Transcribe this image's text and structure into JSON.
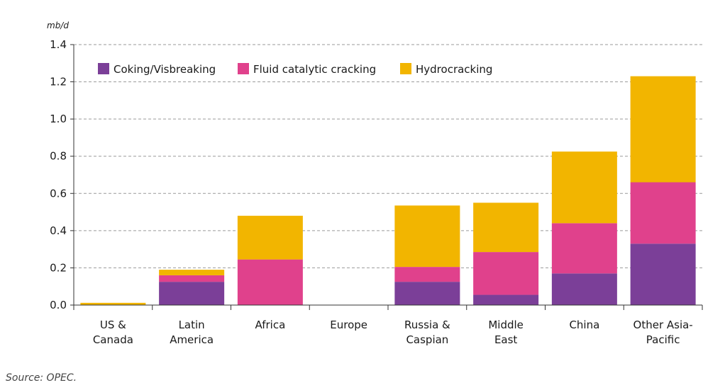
{
  "chart_data": {
    "type": "bar",
    "stacked": true,
    "unit": "mb/d",
    "ylim": [
      0,
      1.4
    ],
    "yticks": [
      "0.0",
      "0.2",
      "0.4",
      "0.6",
      "0.8",
      "1.0",
      "1.2",
      "1.4"
    ],
    "grid": "horizontal dashed",
    "legend_position": "top-left",
    "categories": [
      [
        "US &",
        "Canada"
      ],
      [
        "Latin",
        "America"
      ],
      [
        "Africa"
      ],
      [
        "Europe"
      ],
      [
        "Russia &",
        "Caspian"
      ],
      [
        "Middle",
        "East"
      ],
      [
        "China"
      ],
      [
        "Other Asia-",
        "Pacific"
      ]
    ],
    "series": [
      {
        "name": "Coking/Visbreaking",
        "color": "#7b3f98",
        "values": [
          0.0,
          0.125,
          0.0,
          0.0,
          0.125,
          0.055,
          0.17,
          0.33
        ]
      },
      {
        "name": "Fluid catalytic cracking",
        "color": "#e0418c",
        "values": [
          0.0,
          0.035,
          0.245,
          0.0,
          0.08,
          0.23,
          0.27,
          0.33
        ]
      },
      {
        "name": "Hydrocracking",
        "color": "#f2b500",
        "values": [
          0.012,
          0.03,
          0.235,
          0.0,
          0.33,
          0.265,
          0.385,
          0.57
        ]
      }
    ]
  },
  "source": "Source: OPEC."
}
